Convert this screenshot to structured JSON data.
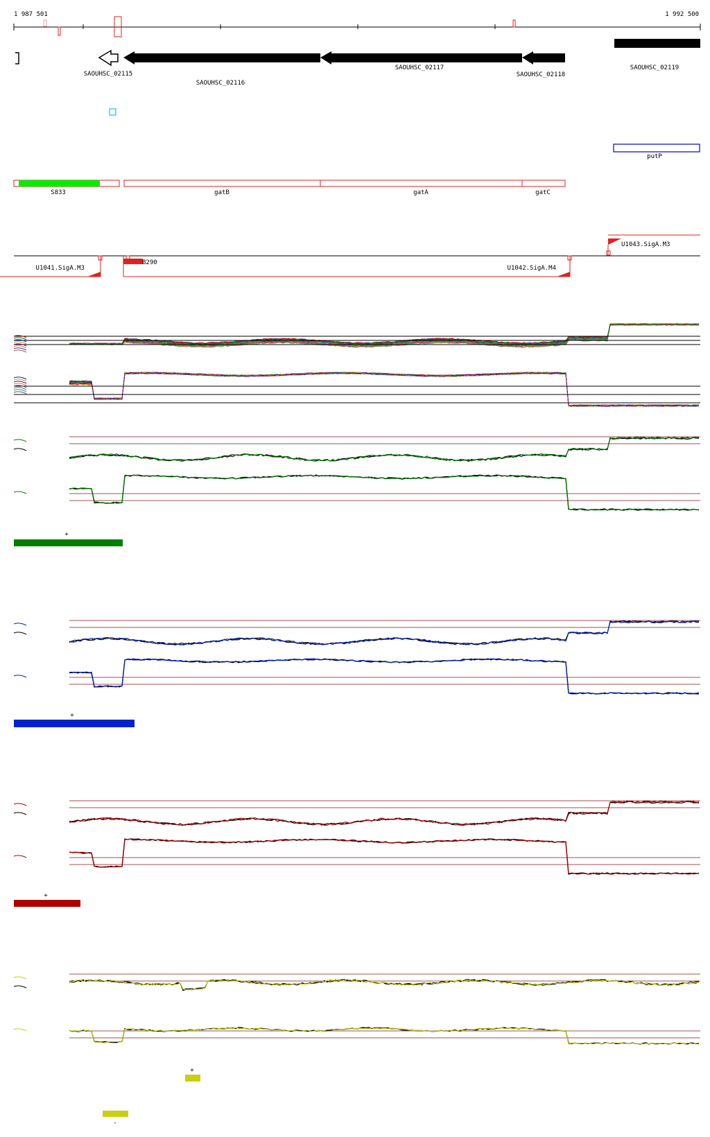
{
  "ruler": {
    "start_label": "1 987 501",
    "end_label": "1 992 500"
  },
  "genes": [
    {
      "name": "SAOUHSC_02115"
    },
    {
      "name": "SAOUHSC_02116"
    },
    {
      "name": "SAOUHSC_02117"
    },
    {
      "name": "SAOUHSC_02118"
    },
    {
      "name": "SAOUHSC_02119"
    }
  ],
  "gene_names": {
    "putP": "putP",
    "S833": "S833",
    "gatB": "gatB",
    "gatA": "gatA",
    "gatC": "gatC"
  },
  "promoters": {
    "U1041": "U1041.SigA.M3",
    "U1042": "U1042.SigA.M4",
    "U1043": "U1043.SigA.M3",
    "small": "B290"
  },
  "panels": [
    {
      "color_name": "green",
      "color": "#008000",
      "sign": "+"
    },
    {
      "color_name": "blue",
      "color": "#0022cc",
      "sign": "+"
    },
    {
      "color_name": "red",
      "color": "#b00000",
      "sign": "+"
    },
    {
      "color_name": "yellow",
      "color": "#c8d010",
      "sign_top": "+",
      "sign_bottom": "-"
    }
  ],
  "colors": {
    "gene_arrow": "#000000",
    "feature_outline": "#e02020",
    "s833_fill": "#00ee00",
    "putp_outline": "#0000cc",
    "misc_box": "#00ccee",
    "track_line": "#a05050"
  }
}
